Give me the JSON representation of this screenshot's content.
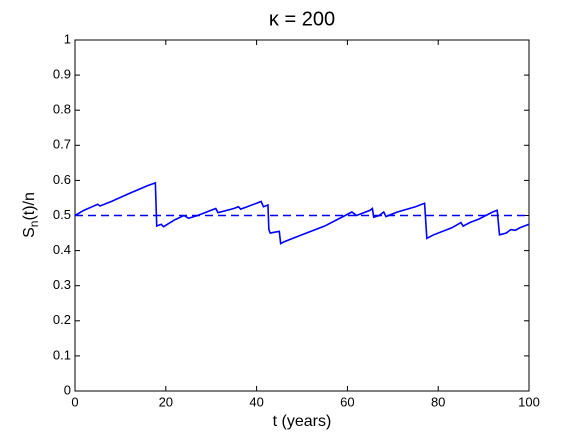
{
  "chart_data": {
    "type": "line",
    "title": "κ = 200",
    "xlabel": "t (years)",
    "ylabel": {
      "main": "S",
      "sub": "n",
      "rest": "(t)/n"
    },
    "x": [
      0,
      2,
      5,
      5.5,
      8,
      12,
      16,
      17.7,
      18,
      19,
      19.5,
      22,
      24,
      25,
      27,
      29,
      31,
      31.5,
      35,
      36,
      36.5,
      40,
      41,
      41.5,
      42.5,
      42.7,
      43,
      45,
      45.3,
      46,
      50,
      55,
      58,
      61,
      62,
      63,
      65,
      65.5,
      65.8,
      67,
      68,
      68.5,
      71,
      75,
      77,
      77.5,
      79,
      83,
      85,
      85.5,
      87,
      88,
      89,
      92,
      93,
      93.5,
      95,
      96,
      97,
      98,
      100
    ],
    "series": [
      {
        "name": "S_n(t)/n",
        "color": "#0000ff",
        "values": [
          0.5,
          0.515,
          0.532,
          0.527,
          0.54,
          0.563,
          0.585,
          0.593,
          0.47,
          0.475,
          0.468,
          0.488,
          0.5,
          0.492,
          0.5,
          0.51,
          0.52,
          0.508,
          0.52,
          0.525,
          0.518,
          0.535,
          0.54,
          0.525,
          0.53,
          0.46,
          0.45,
          0.455,
          0.42,
          0.425,
          0.445,
          0.47,
          0.49,
          0.51,
          0.5,
          0.505,
          0.515,
          0.52,
          0.495,
          0.5,
          0.51,
          0.497,
          0.51,
          0.525,
          0.535,
          0.435,
          0.445,
          0.465,
          0.48,
          0.47,
          0.48,
          0.485,
          0.49,
          0.51,
          0.515,
          0.445,
          0.45,
          0.46,
          0.458,
          0.465,
          0.475
        ]
      }
    ],
    "reference_line": {
      "value": 0.5,
      "color": "#0000ff",
      "style": "dashed"
    },
    "xlim": [
      0,
      100
    ],
    "xticks": [
      0,
      20,
      40,
      60,
      80,
      100
    ],
    "ylim": [
      0,
      1
    ],
    "yticks": [
      0,
      0.1,
      0.2,
      0.3,
      0.4,
      0.5,
      0.6,
      0.7,
      0.8,
      0.9,
      1
    ],
    "grid": false
  }
}
